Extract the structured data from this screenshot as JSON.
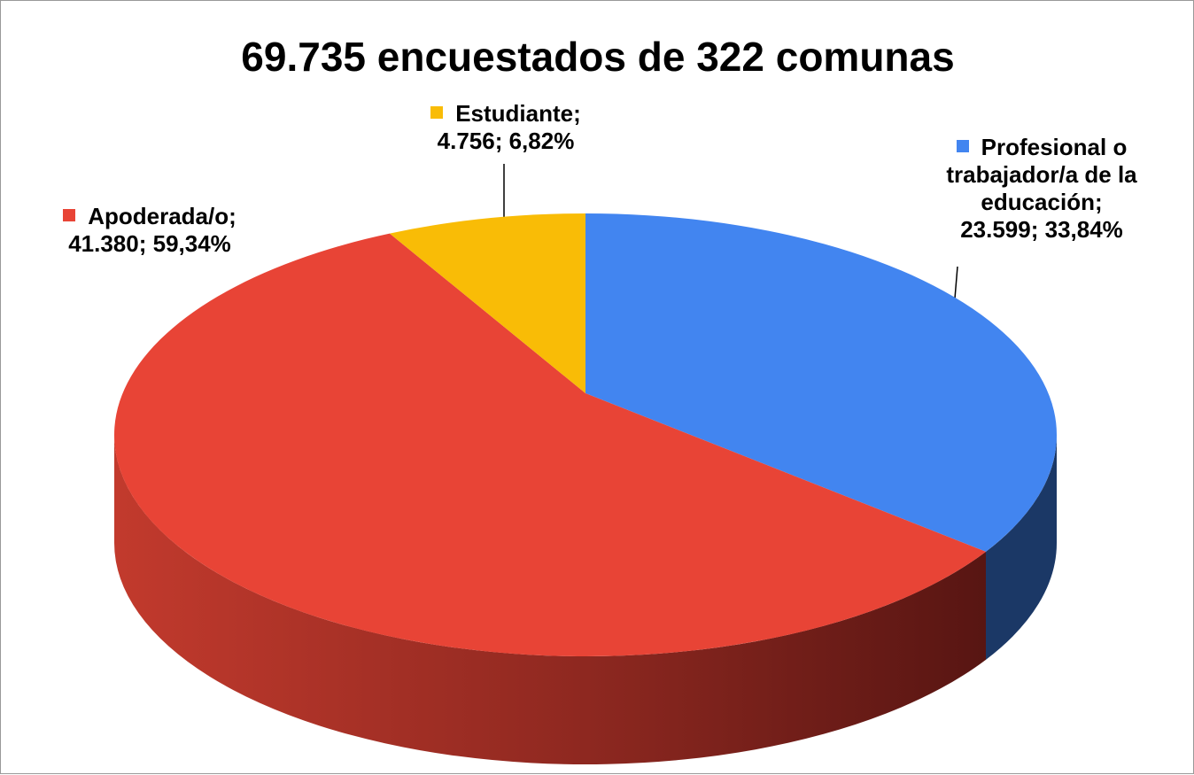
{
  "chart_data": {
    "type": "pie3d",
    "title": "69.735 encuestados de 322 comunas",
    "categories": [
      "Profesional o trabajador/a de la educación;",
      "Apoderada/o;",
      "Estudiante;"
    ],
    "values": [
      23599,
      41380,
      4756
    ],
    "value_labels": [
      "23.599; 33,84%",
      "41.380; 59,34%",
      "4.756; 6,82%"
    ],
    "colors": [
      "#4285f0",
      "#e84436",
      "#f9bc06"
    ]
  }
}
